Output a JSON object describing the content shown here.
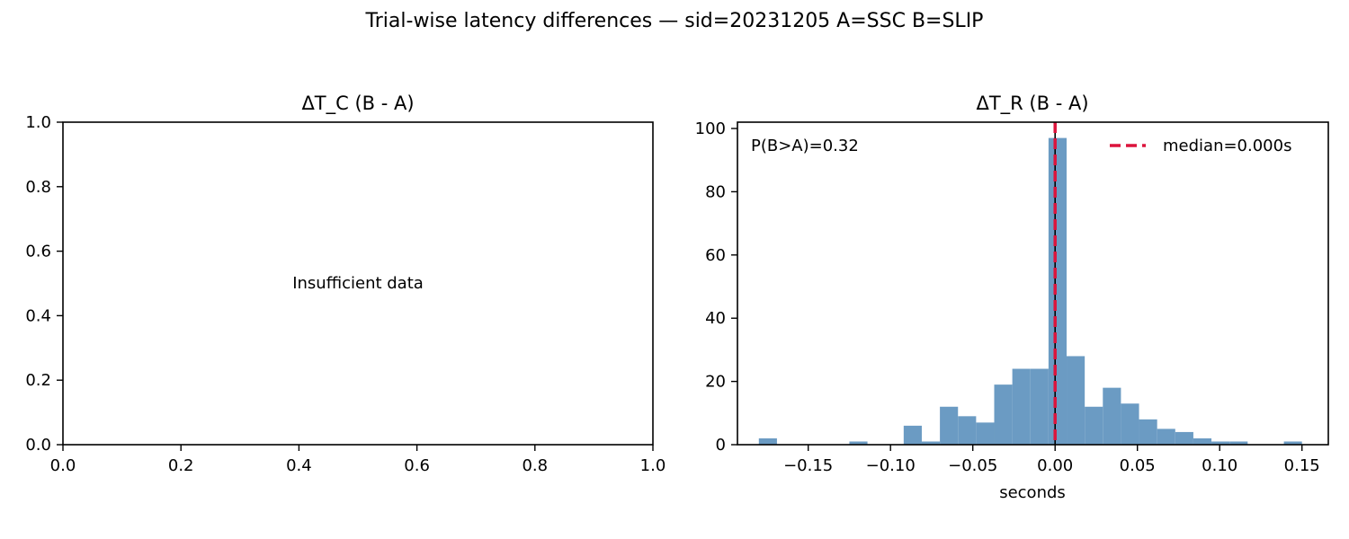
{
  "suptitle": "Trial-wise latency differences — sid=20231205  A=SSC  B=SLIP",
  "chart_data": [
    {
      "type": "empty",
      "title": "ΔT_C (B - A)",
      "message": "Insufficient data",
      "xlim": [
        0,
        1
      ],
      "ylim": [
        0,
        1
      ],
      "xticks": [
        "0.0",
        "0.2",
        "0.4",
        "0.6",
        "0.8",
        "1.0"
      ],
      "yticks": [
        "0.0",
        "0.2",
        "0.4",
        "0.6",
        "0.8",
        "1.0"
      ]
    },
    {
      "type": "histogram",
      "title": "ΔT_R (B - A)",
      "xlabel": "seconds",
      "xlim": [
        -0.193,
        0.166
      ],
      "ylim": [
        0,
        102
      ],
      "xticks": [
        "−0.15",
        "−0.10",
        "−0.05",
        "0.00",
        "0.05",
        "0.10",
        "0.15"
      ],
      "yticks": [
        "0",
        "20",
        "40",
        "60",
        "80",
        "100"
      ],
      "bin_width": 0.011,
      "bins": [
        {
          "x0": -0.18,
          "count": 2
        },
        {
          "x0": -0.169,
          "count": 0
        },
        {
          "x0": -0.158,
          "count": 0
        },
        {
          "x0": -0.147,
          "count": 0
        },
        {
          "x0": -0.136,
          "count": 0
        },
        {
          "x0": -0.125,
          "count": 1
        },
        {
          "x0": -0.114,
          "count": 0
        },
        {
          "x0": -0.103,
          "count": 0
        },
        {
          "x0": -0.092,
          "count": 6
        },
        {
          "x0": -0.081,
          "count": 1
        },
        {
          "x0": -0.07,
          "count": 12
        },
        {
          "x0": -0.059,
          "count": 9
        },
        {
          "x0": -0.048,
          "count": 7
        },
        {
          "x0": -0.037,
          "count": 19
        },
        {
          "x0": -0.026,
          "count": 24
        },
        {
          "x0": -0.015,
          "count": 24
        },
        {
          "x0": -0.004,
          "count": 97
        },
        {
          "x0": 0.007,
          "count": 28
        },
        {
          "x0": 0.018,
          "count": 12
        },
        {
          "x0": 0.029,
          "count": 18
        },
        {
          "x0": 0.04,
          "count": 13
        },
        {
          "x0": 0.051,
          "count": 8
        },
        {
          "x0": 0.062,
          "count": 5
        },
        {
          "x0": 0.073,
          "count": 4
        },
        {
          "x0": 0.084,
          "count": 2
        },
        {
          "x0": 0.095,
          "count": 1
        },
        {
          "x0": 0.106,
          "count": 1
        },
        {
          "x0": 0.117,
          "count": 0
        },
        {
          "x0": 0.128,
          "count": 0
        },
        {
          "x0": 0.139,
          "count": 1
        }
      ],
      "bar_color": "#6b9bc3",
      "zero_line": {
        "x": 0.0,
        "color": "#000000"
      },
      "median_line": {
        "x": 0.0,
        "color": "#dc143c",
        "label": "median=0.000s"
      },
      "annotation": "P(B>A)=0.32",
      "legend_position": "upper-right"
    }
  ]
}
